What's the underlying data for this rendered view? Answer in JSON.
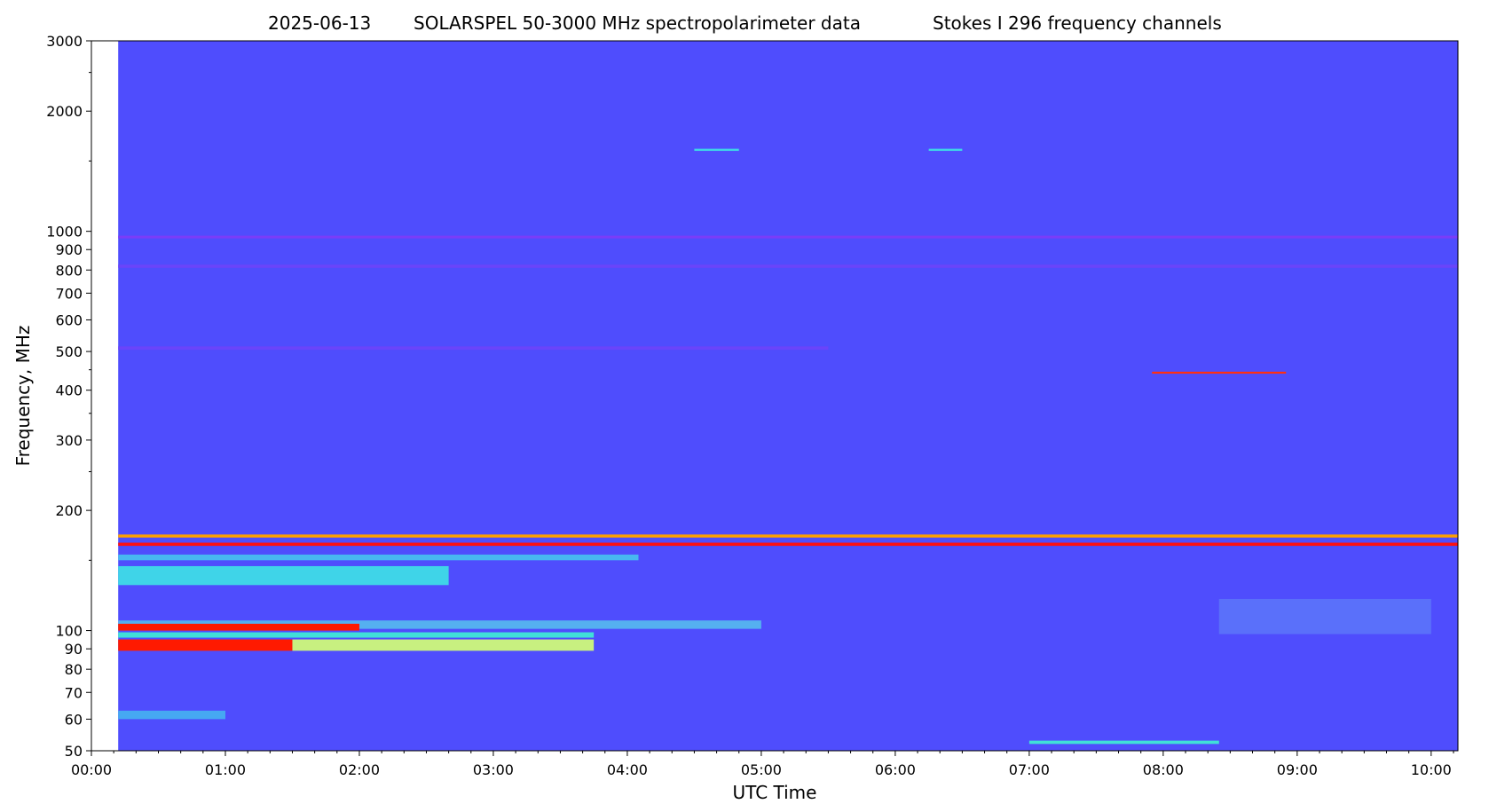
{
  "chart_data": {
    "type": "heatmap",
    "title_parts": [
      "2025-06-13",
      "SOLARSPEL   50-3000 MHz spectropolarimeter data",
      "Stokes I   296 frequency channels"
    ],
    "xlabel": "UTC Time",
    "ylabel": "Frequency, MHz",
    "y_scale": "log",
    "ylim": [
      50,
      3000
    ],
    "xlim": [
      "00:00",
      "10:12"
    ],
    "data_start": "00:12",
    "x_ticks": [
      "00:00",
      "01:00",
      "02:00",
      "03:00",
      "04:00",
      "05:00",
      "06:00",
      "07:00",
      "08:00",
      "09:00",
      "10:00"
    ],
    "y_ticks": [
      {
        "value": 50,
        "label": "50"
      },
      {
        "value": 60,
        "label": "60"
      },
      {
        "value": 70,
        "label": "70"
      },
      {
        "value": 80,
        "label": "80"
      },
      {
        "value": 90,
        "label": "90"
      },
      {
        "value": 100,
        "label": "100"
      },
      {
        "value": 200,
        "label": "200"
      },
      {
        "value": 300,
        "label": "300"
      },
      {
        "value": 400,
        "label": "400"
      },
      {
        "value": 500,
        "label": "500"
      },
      {
        "value": 600,
        "label": "600"
      },
      {
        "value": 700,
        "label": "700"
      },
      {
        "value": 800,
        "label": "800"
      },
      {
        "value": 900,
        "label": "900"
      },
      {
        "value": 1000,
        "label": "1000"
      },
      {
        "value": 2000,
        "label": "2000"
      },
      {
        "value": 3000,
        "label": "3000"
      }
    ],
    "y_minor_unlabeled": [
      150,
      250,
      350,
      450,
      1500,
      2500
    ],
    "colormap": "rainbow",
    "background_color": "#4f4dfd",
    "features": [
      {
        "freq_min": 960,
        "freq_max": 975,
        "t_start": "00:12",
        "t_end": "10:12",
        "color": "#7a3cf8"
      },
      {
        "freq_min": 810,
        "freq_max": 825,
        "t_start": "00:12",
        "t_end": "10:12",
        "color": "#6a44fa"
      },
      {
        "freq_min": 505,
        "freq_max": 515,
        "t_start": "00:12",
        "t_end": "05:30",
        "color": "#6a44fa"
      },
      {
        "freq_min": 163,
        "freq_max": 166,
        "t_start": "00:12",
        "t_end": "10:12",
        "color": "#ff1010"
      },
      {
        "freq_min": 171,
        "freq_max": 174,
        "t_start": "00:12",
        "t_end": "10:12",
        "color": "#ffa000"
      },
      {
        "freq_min": 150,
        "freq_max": 155,
        "t_start": "00:12",
        "t_end": "04:05",
        "color": "#47b8f0"
      },
      {
        "freq_min": 130,
        "freq_max": 145,
        "t_start": "00:12",
        "t_end": "02:40",
        "color": "#3fd4e8"
      },
      {
        "freq_min": 101,
        "freq_max": 106,
        "t_start": "00:12",
        "t_end": "05:00",
        "color": "#55b0f0"
      },
      {
        "freq_min": 100,
        "freq_max": 104,
        "t_start": "00:12",
        "t_end": "02:00",
        "color": "#ff1a00"
      },
      {
        "freq_min": 89,
        "freq_max": 95,
        "t_start": "00:12",
        "t_end": "01:30",
        "color": "#ff1a00"
      },
      {
        "freq_min": 89,
        "freq_max": 95,
        "t_start": "01:30",
        "t_end": "03:45",
        "color": "#c8f080"
      },
      {
        "freq_min": 96,
        "freq_max": 99,
        "t_start": "00:12",
        "t_end": "03:45",
        "color": "#40e0d8"
      },
      {
        "freq_min": 60,
        "freq_max": 63,
        "t_start": "00:12",
        "t_end": "01:00",
        "color": "#46a8f2"
      },
      {
        "freq_min": 52,
        "freq_max": 53,
        "t_start": "07:00",
        "t_end": "08:25",
        "color": "#40e0d8"
      },
      {
        "freq_min": 1590,
        "freq_max": 1610,
        "t_start": "04:30",
        "t_end": "04:50",
        "color": "#3fd4e8"
      },
      {
        "freq_min": 1590,
        "freq_max": 1610,
        "t_start": "06:15",
        "t_end": "06:30",
        "color": "#3fd4e8"
      },
      {
        "freq_min": 440,
        "freq_max": 445,
        "t_start": "07:55",
        "t_end": "08:55",
        "color": "#ff3010"
      },
      {
        "freq_min": 98,
        "freq_max": 120,
        "t_start": "08:25",
        "t_end": "10:00",
        "color": "#5a70fa"
      }
    ]
  }
}
